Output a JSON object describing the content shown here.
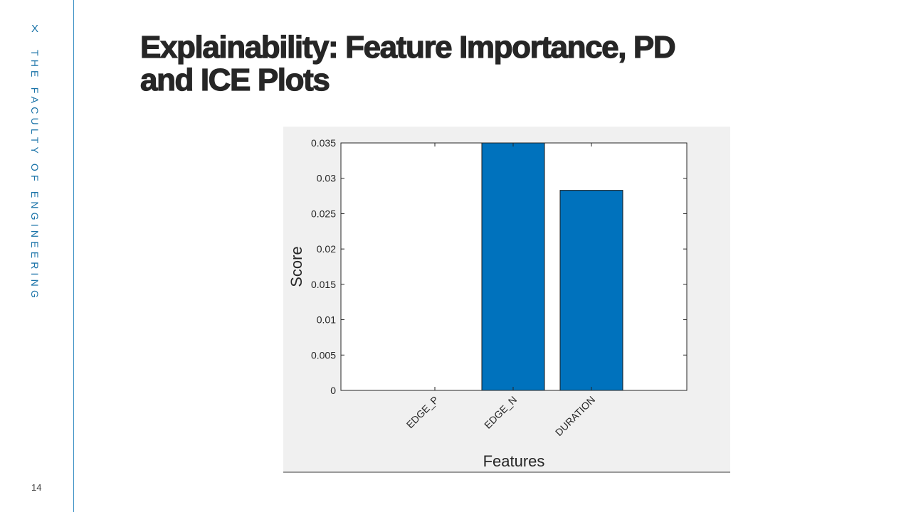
{
  "slide": {
    "brand_mark": "X",
    "brand_text": "THE FACULTY OF ENGINEERING",
    "title_line1": "Explainability: Feature Importance, PD",
    "title_line2": "and ICE Plots",
    "page_number": "14"
  },
  "colors": {
    "brand": "#1a73a8",
    "bar": "#0072bd",
    "title": "#262626",
    "figure_bg": "#f0f0f0"
  },
  "chart_data": {
    "type": "bar",
    "categories": [
      "EDGE_P",
      "EDGE_N",
      "DURATION"
    ],
    "values": [
      0,
      0.035,
      0.0283
    ],
    "xlabel": "Features",
    "ylabel": "Score",
    "ylim": [
      0,
      0.035
    ],
    "yticks": [
      0,
      0.005,
      0.01,
      0.015,
      0.02,
      0.025,
      0.03,
      0.035
    ],
    "yticklabels": [
      "0",
      "0.005",
      "0.01",
      "0.015",
      "0.02",
      "0.025",
      "0.03",
      "0.035"
    ],
    "grid": false,
    "legend": "none"
  }
}
